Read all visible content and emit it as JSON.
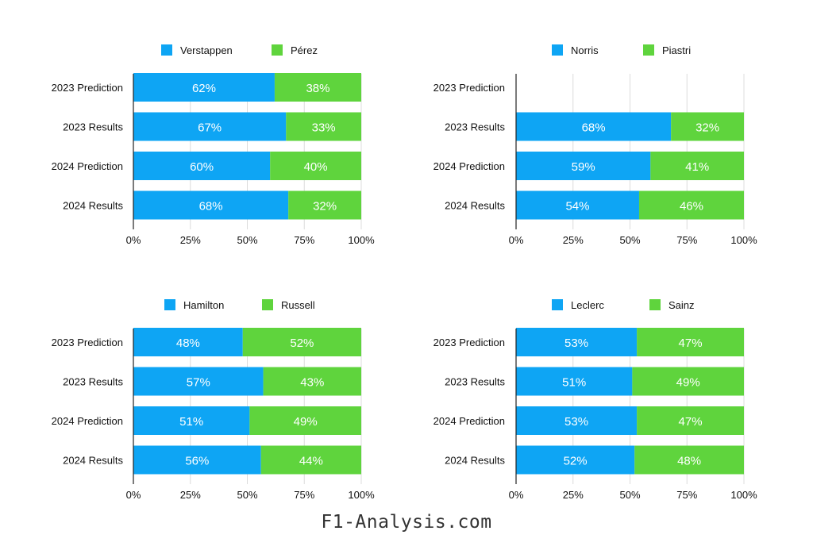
{
  "chart_data": [
    {
      "type": "stacked-bar-100",
      "legend": [
        "Verstappen",
        "Pérez"
      ],
      "categories": [
        "2023 Prediction",
        "2023 Results",
        "2024 Prediction",
        "2024 Results"
      ],
      "series": [
        {
          "name": "Verstappen",
          "values": [
            62,
            67,
            60,
            68
          ]
        },
        {
          "name": "Pérez",
          "values": [
            38,
            33,
            40,
            32
          ]
        }
      ],
      "xticks": [
        "0%",
        "25%",
        "50%",
        "75%",
        "100%"
      ],
      "xlim": [
        0,
        100
      ]
    },
    {
      "type": "stacked-bar-100",
      "legend": [
        "Norris",
        "Piastri"
      ],
      "categories": [
        "2023 Prediction",
        "2023 Results",
        "2024 Prediction",
        "2024 Results"
      ],
      "series": [
        {
          "name": "Norris",
          "values": [
            null,
            68,
            59,
            54
          ]
        },
        {
          "name": "Piastri",
          "values": [
            null,
            32,
            41,
            46
          ]
        }
      ],
      "xticks": [
        "0%",
        "25%",
        "50%",
        "75%",
        "100%"
      ],
      "xlim": [
        0,
        100
      ]
    },
    {
      "type": "stacked-bar-100",
      "legend": [
        "Hamilton",
        "Russell"
      ],
      "categories": [
        "2023 Prediction",
        "2023 Results",
        "2024 Prediction",
        "2024 Results"
      ],
      "series": [
        {
          "name": "Hamilton",
          "values": [
            48,
            57,
            51,
            56
          ]
        },
        {
          "name": "Russell",
          "values": [
            52,
            43,
            49,
            44
          ]
        }
      ],
      "xticks": [
        "0%",
        "25%",
        "50%",
        "75%",
        "100%"
      ],
      "xlim": [
        0,
        100
      ]
    },
    {
      "type": "stacked-bar-100",
      "legend": [
        "Leclerc",
        "Sainz"
      ],
      "categories": [
        "2023 Prediction",
        "2023 Results",
        "2024 Prediction",
        "2024 Results"
      ],
      "series": [
        {
          "name": "Leclerc",
          "values": [
            53,
            51,
            53,
            52
          ]
        },
        {
          "name": "Sainz",
          "values": [
            47,
            49,
            47,
            48
          ]
        }
      ],
      "xticks": [
        "0%",
        "25%",
        "50%",
        "75%",
        "100%"
      ],
      "xlim": [
        0,
        100
      ]
    }
  ],
  "colors": {
    "first": "#0ea5f4",
    "second": "#5fd43d",
    "grid": "#dcdcdc",
    "axis": "#222222"
  },
  "footer": {
    "text": "F1-Analysis.com"
  }
}
